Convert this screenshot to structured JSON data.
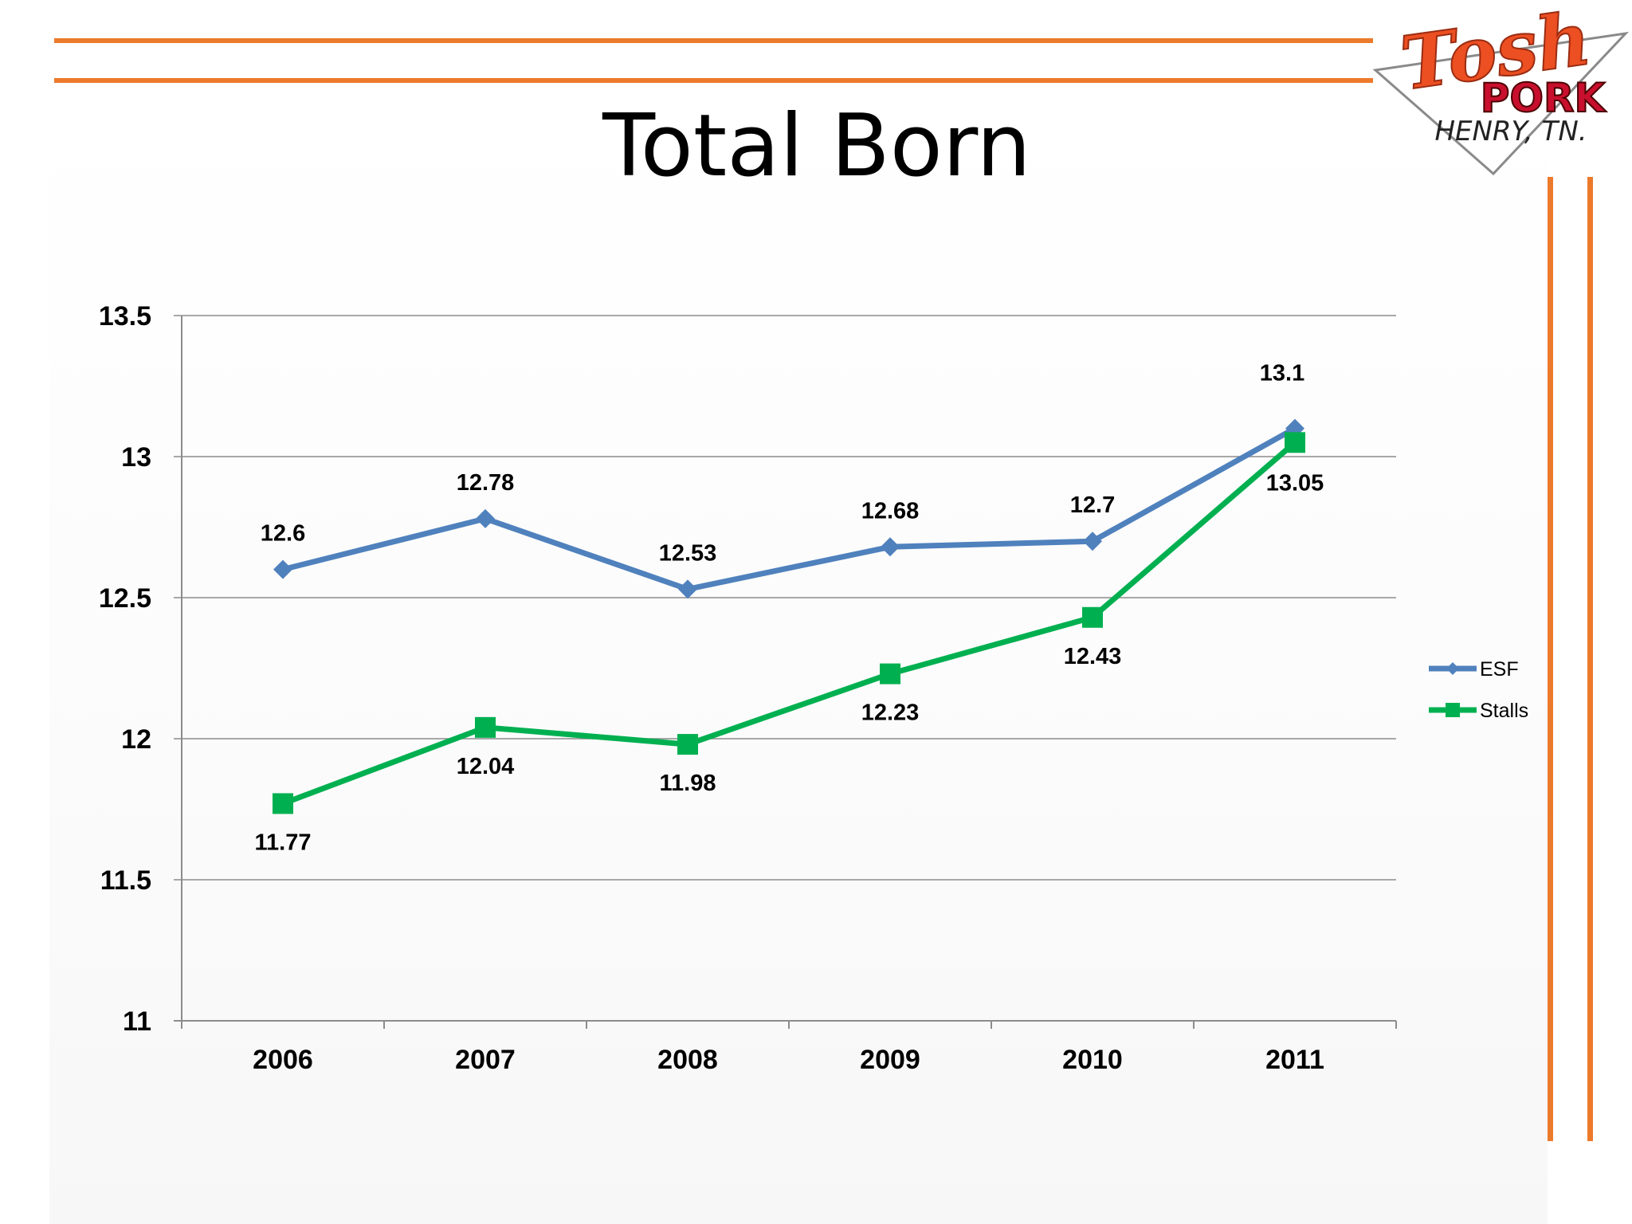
{
  "slide": {
    "title": "Total Born",
    "logo": {
      "line1": "Tosh",
      "line2": "PORK",
      "line3": "HENRY, TN."
    },
    "accent_color": "#ec7a2b"
  },
  "chart_data": {
    "type": "line",
    "title": "",
    "xlabel": "",
    "ylabel": "",
    "categories": [
      "2006",
      "2007",
      "2008",
      "2009",
      "2010",
      "2011"
    ],
    "ylim": [
      11,
      13.5
    ],
    "yticks": [
      "11",
      "11.5",
      "12",
      "12.5",
      "13",
      "13.5"
    ],
    "grid": true,
    "legend_position": "right",
    "series": [
      {
        "name": "ESF",
        "values": [
          12.6,
          12.78,
          12.53,
          12.68,
          12.7,
          13.1
        ],
        "labels": [
          "12.6",
          "12.78",
          "12.53",
          "12.68",
          "12.7",
          "13.1"
        ],
        "color": "#4f81bd",
        "marker": "diamond"
      },
      {
        "name": "Stalls",
        "values": [
          11.77,
          12.04,
          11.98,
          12.23,
          12.43,
          13.05
        ],
        "labels": [
          "11.77",
          "12.04",
          "11.98",
          "12.23",
          "12.43",
          "13.05"
        ],
        "color": "#00b050",
        "marker": "square"
      }
    ]
  }
}
